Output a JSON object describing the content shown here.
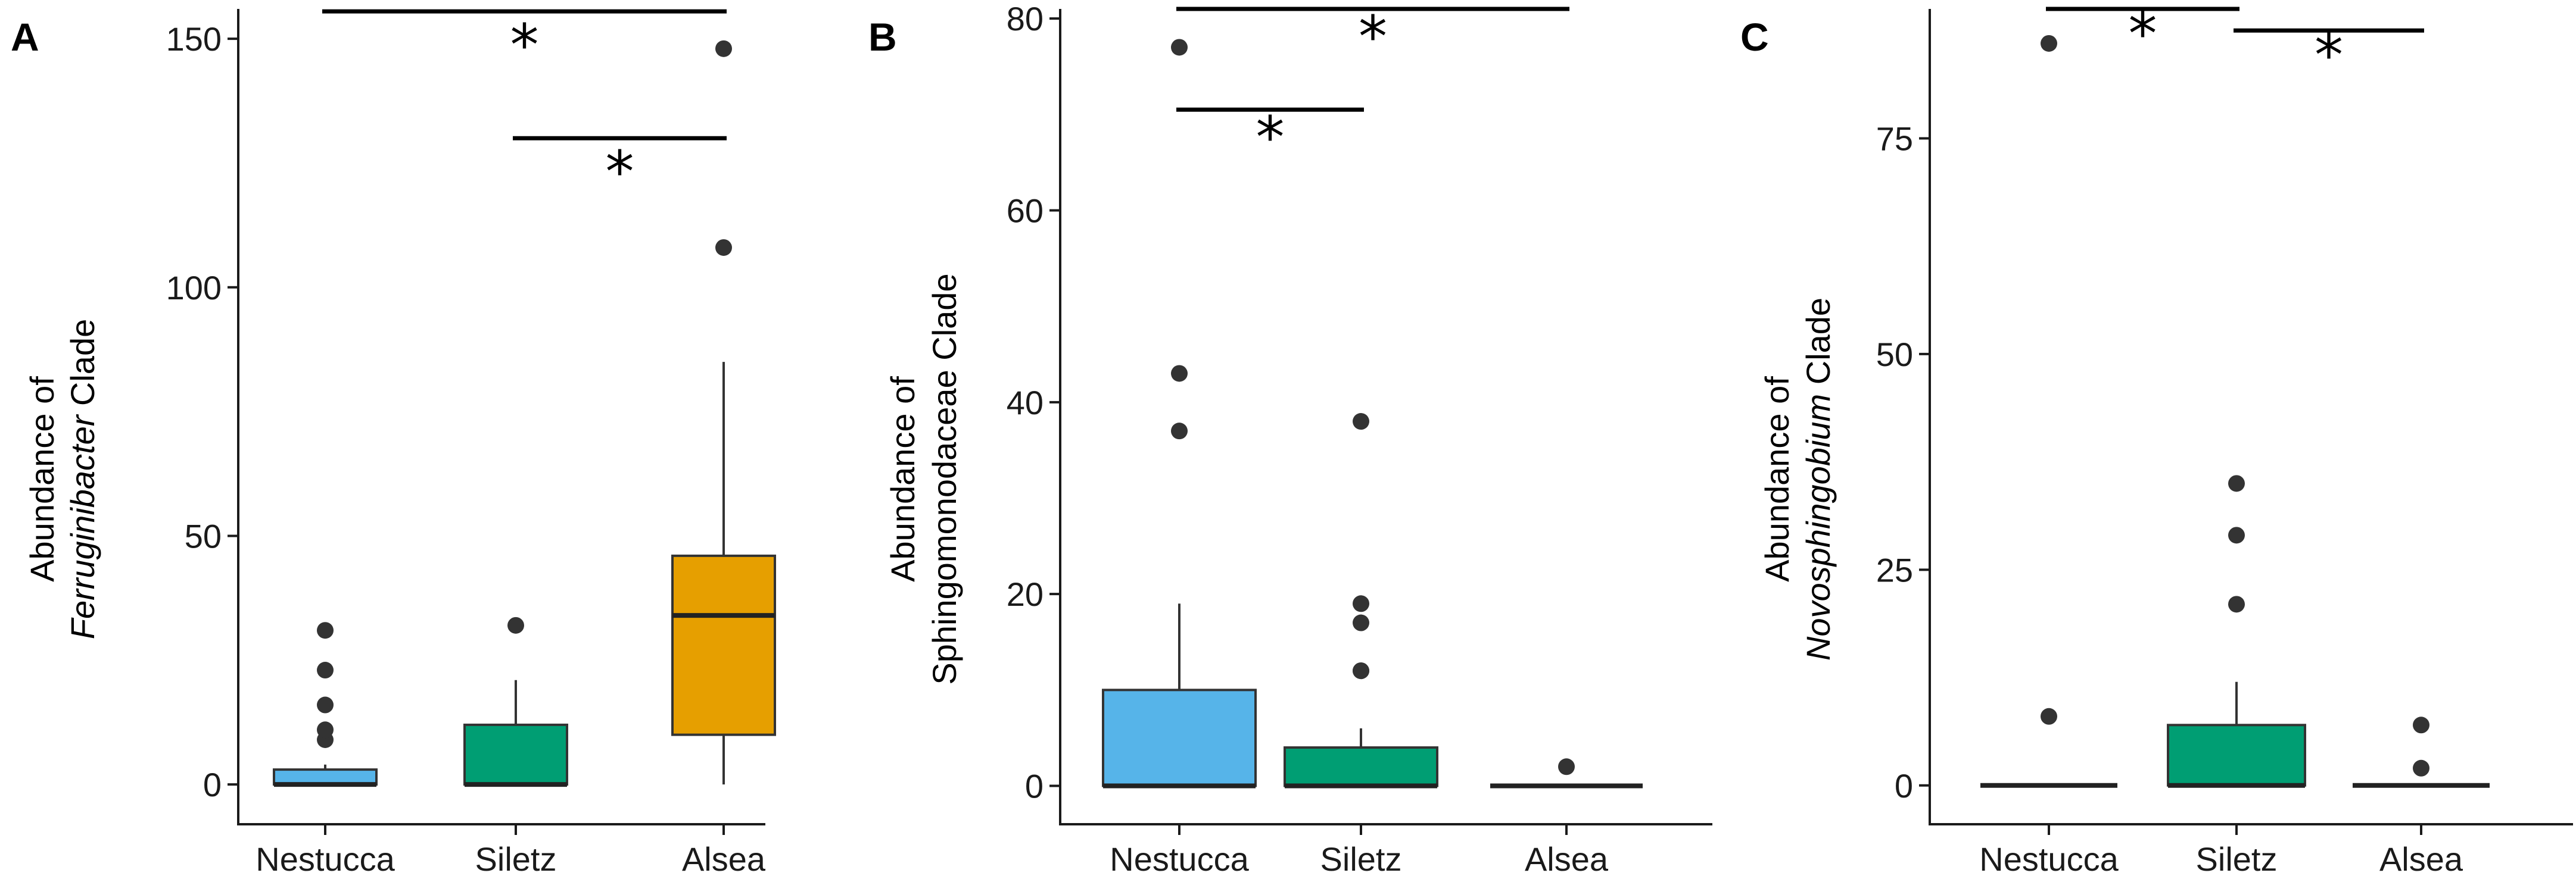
{
  "chart_data": [
    {
      "type": "box",
      "panel": "A",
      "ylabel_parts": [
        {
          "text": "Abundance of",
          "italic": false
        },
        {
          "text": "Ferruginibacter",
          "italic": true,
          "suffix": " Clade"
        }
      ],
      "ylim": [
        -8,
        156
      ],
      "yticks": [
        0,
        50,
        100,
        150
      ],
      "categories": [
        "Nestucca",
        "Siletz",
        "Alsea"
      ],
      "colors": [
        "#56B4E9",
        "#009E73",
        "#E69F00"
      ],
      "boxes": [
        {
          "q1": 0,
          "median": 0,
          "q3": 3,
          "whisker_low": 0,
          "whisker_high": 4,
          "outliers": [
            9,
            11,
            16,
            23,
            31
          ]
        },
        {
          "q1": 0,
          "median": 0,
          "q3": 12,
          "whisker_low": 0,
          "whisker_high": 21,
          "outliers": [
            32
          ]
        },
        {
          "q1": 10,
          "median": 34,
          "q3": 46,
          "whisker_low": 0,
          "whisker_high": 85,
          "outliers": [
            108,
            148
          ]
        }
      ],
      "significance": [
        {
          "from": 0,
          "to": 2,
          "y": 155.5,
          "label": "*"
        },
        {
          "from": 1,
          "to": 2,
          "y": 130,
          "label": "*"
        }
      ]
    },
    {
      "type": "box",
      "panel": "B",
      "ylabel_parts": [
        {
          "text": "Abundance of",
          "italic": false
        },
        {
          "text": "Sphingomonodaceae Clade",
          "italic": false
        }
      ],
      "ylim": [
        -4,
        81
      ],
      "yticks": [
        0,
        20,
        40,
        60,
        80
      ],
      "categories": [
        "Nestucca",
        "Siletz",
        "Alsea"
      ],
      "colors": [
        "#56B4E9",
        "#009E73",
        "#E69F00"
      ],
      "boxes": [
        {
          "q1": 0,
          "median": 0,
          "q3": 10,
          "whisker_low": 0,
          "whisker_high": 19,
          "outliers": [
            37,
            43,
            77
          ]
        },
        {
          "q1": 0,
          "median": 0,
          "q3": 4,
          "whisker_low": 0,
          "whisker_high": 6,
          "outliers": [
            12,
            12,
            17,
            19,
            38
          ]
        },
        {
          "q1": 0,
          "median": 0,
          "q3": 0,
          "whisker_low": 0,
          "whisker_high": 0,
          "outliers": [
            2
          ]
        }
      ],
      "significance": [
        {
          "from": 0,
          "to": 2,
          "y": 81,
          "label": "*"
        },
        {
          "from": 0,
          "to": 1,
          "y": 70.5,
          "label": "*"
        }
      ]
    },
    {
      "type": "box",
      "panel": "C",
      "ylabel_parts": [
        {
          "text": "Abundance of",
          "italic": false
        },
        {
          "text": "Novosphingobium",
          "italic": true,
          "suffix": " Clade"
        }
      ],
      "ylim": [
        -4.5,
        90
      ],
      "yticks": [
        0,
        25,
        50,
        75
      ],
      "categories": [
        "Nestucca",
        "Siletz",
        "Alsea"
      ],
      "colors": [
        "#56B4E9",
        "#009E73",
        "#E69F00"
      ],
      "boxes": [
        {
          "q1": 0,
          "median": 0,
          "q3": 0,
          "whisker_low": 0,
          "whisker_high": 0,
          "outliers": [
            8,
            86
          ]
        },
        {
          "q1": 0,
          "median": 0,
          "q3": 7,
          "whisker_low": 0,
          "whisker_high": 12,
          "outliers": [
            21,
            29,
            35
          ]
        },
        {
          "q1": 0,
          "median": 0,
          "q3": 0,
          "whisker_low": 0,
          "whisker_high": 0,
          "outliers": [
            2,
            7
          ]
        }
      ],
      "significance": [
        {
          "from": 0,
          "to": 1,
          "y": 90,
          "label": "*"
        },
        {
          "from": 1,
          "to": 2,
          "y": 87.5,
          "label": "*"
        }
      ]
    }
  ]
}
